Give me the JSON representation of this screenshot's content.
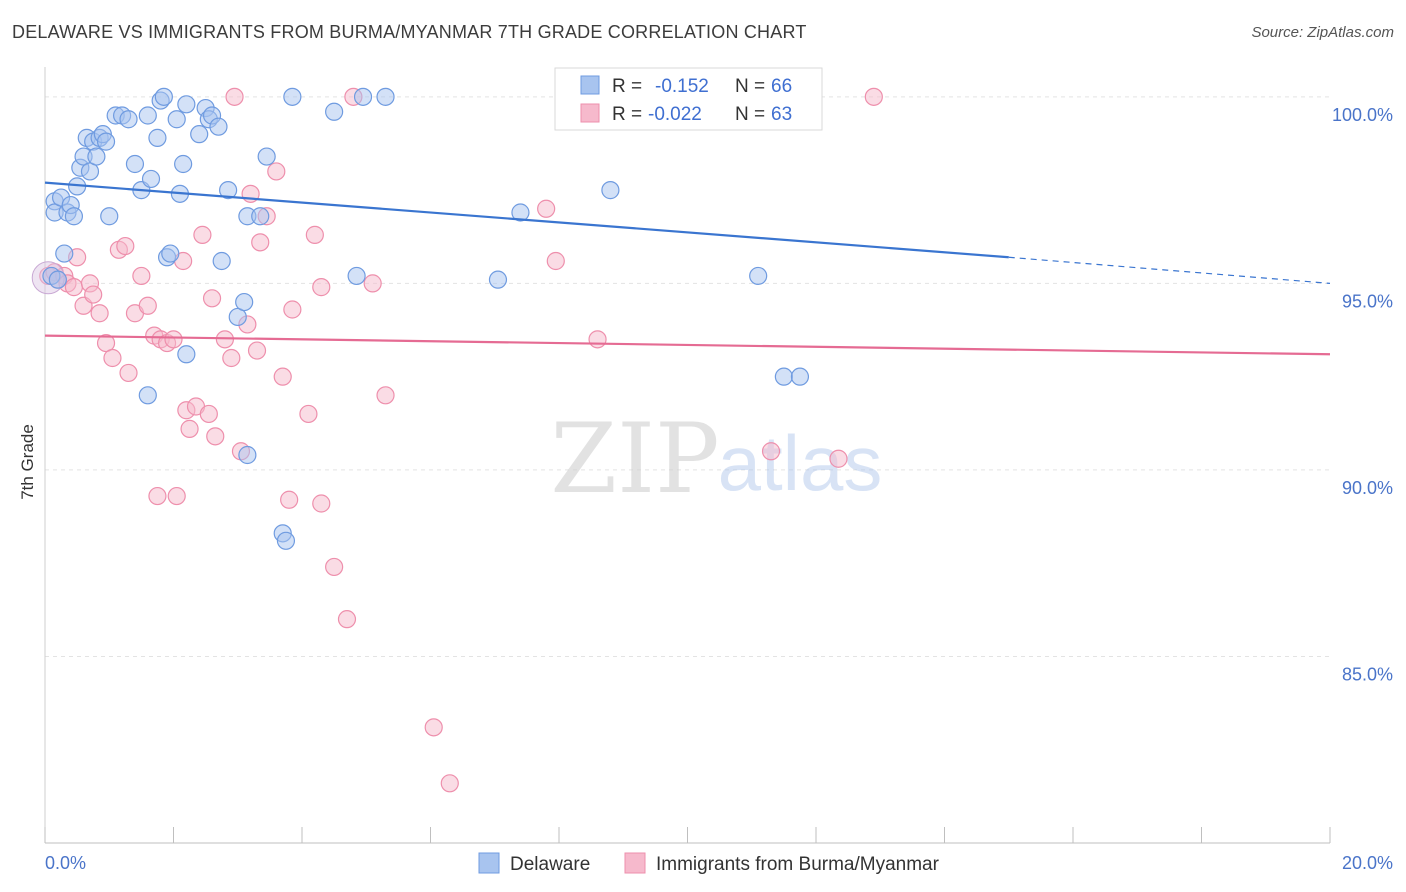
{
  "title": "DELAWARE VS IMMIGRANTS FROM BURMA/MYANMAR 7TH GRADE CORRELATION CHART",
  "source": "Source: ZipAtlas.com",
  "watermark": {
    "zip": "ZIP",
    "atlas": "atlas"
  },
  "legend_top": [
    {
      "r_label": "R =",
      "r_value": "-0.152",
      "n_label": "N =",
      "n_value": "66",
      "color": "#a8c4ef"
    },
    {
      "r_label": "R =",
      "r_value": "-0.022",
      "n_label": "N =",
      "n_value": "63",
      "color": "#f6b9cc"
    }
  ],
  "legend_bottom": [
    {
      "label": "Delaware",
      "color": "#a8c4ef"
    },
    {
      "label": "Immigrants from Burma/Myanmar",
      "color": "#f6b9cc"
    }
  ],
  "chart_data": {
    "type": "scatter",
    "ylabel": "7th Grade",
    "xlim": [
      0,
      20
    ],
    "ylim": [
      80.0,
      100.8
    ],
    "x_tick_labels": [
      "0.0%",
      "20.0%"
    ],
    "y_ticks": [
      85,
      90,
      95,
      100
    ],
    "y_tick_labels": [
      "85.0%",
      "90.0%",
      "95.0%",
      "100.0%"
    ],
    "grid": true,
    "series": [
      {
        "name": "Delaware",
        "color": "#6f9be0",
        "fill": "#a8c4ef",
        "trend": {
          "x0": 0,
          "y0": 97.7,
          "x1": 15.0,
          "y1": 95.7,
          "dash_to_x": 20.0,
          "dash_to_y": 95.0,
          "color": "#3a75d0"
        },
        "points": [
          [
            0.15,
            97.2
          ],
          [
            0.15,
            96.9
          ],
          [
            0.25,
            97.3
          ],
          [
            0.3,
            95.8
          ],
          [
            0.35,
            96.9
          ],
          [
            0.4,
            97.1
          ],
          [
            0.45,
            96.8
          ],
          [
            0.5,
            97.6
          ],
          [
            0.55,
            98.1
          ],
          [
            0.6,
            98.4
          ],
          [
            0.65,
            98.9
          ],
          [
            0.7,
            98.0
          ],
          [
            0.75,
            98.8
          ],
          [
            0.8,
            98.4
          ],
          [
            0.85,
            98.9
          ],
          [
            0.9,
            99.0
          ],
          [
            0.95,
            98.8
          ],
          [
            1.0,
            96.8
          ],
          [
            1.1,
            99.5
          ],
          [
            1.2,
            99.5
          ],
          [
            1.3,
            99.4
          ],
          [
            1.4,
            98.2
          ],
          [
            1.5,
            97.5
          ],
          [
            1.6,
            99.5
          ],
          [
            1.65,
            97.8
          ],
          [
            1.75,
            98.9
          ],
          [
            1.8,
            99.9
          ],
          [
            1.85,
            100.0
          ],
          [
            1.9,
            95.7
          ],
          [
            2.05,
            99.4
          ],
          [
            2.1,
            97.4
          ],
          [
            2.15,
            98.2
          ],
          [
            2.2,
            99.8
          ],
          [
            2.4,
            99.0
          ],
          [
            2.5,
            99.7
          ],
          [
            2.55,
            99.4
          ],
          [
            2.6,
            99.5
          ],
          [
            2.7,
            99.2
          ],
          [
            2.75,
            95.6
          ],
          [
            2.85,
            97.5
          ],
          [
            3.0,
            94.1
          ],
          [
            3.1,
            94.5
          ],
          [
            3.15,
            96.8
          ],
          [
            3.35,
            96.8
          ],
          [
            3.45,
            98.4
          ],
          [
            2.2,
            93.1
          ],
          [
            1.6,
            92.0
          ],
          [
            3.15,
            90.4
          ],
          [
            3.7,
            88.3
          ],
          [
            3.75,
            88.1
          ],
          [
            3.85,
            100.0
          ],
          [
            4.5,
            99.6
          ],
          [
            4.85,
            95.2
          ],
          [
            4.95,
            100.0
          ],
          [
            5.3,
            100.0
          ],
          [
            7.05,
            95.1
          ],
          [
            7.4,
            96.9
          ],
          [
            8.8,
            97.5
          ],
          [
            10.1,
            100.0
          ],
          [
            11.1,
            95.2
          ],
          [
            11.2,
            100.0
          ],
          [
            11.5,
            92.5
          ],
          [
            11.75,
            92.5
          ],
          [
            0.1,
            95.2
          ],
          [
            0.2,
            95.1
          ],
          [
            1.95,
            95.8
          ]
        ]
      },
      {
        "name": "Immigrants from Burma/Myanmar",
        "color": "#ee8fac",
        "fill": "#f6b9cc",
        "trend": {
          "x0": 0,
          "y0": 93.6,
          "x1": 20.0,
          "y1": 93.1,
          "color": "#e56b93"
        },
        "points": [
          [
            0.05,
            95.2
          ],
          [
            0.15,
            95.3
          ],
          [
            0.2,
            95.1
          ],
          [
            0.3,
            95.2
          ],
          [
            0.35,
            95.0
          ],
          [
            0.45,
            94.9
          ],
          [
            0.5,
            95.7
          ],
          [
            0.6,
            94.4
          ],
          [
            0.7,
            95.0
          ],
          [
            0.75,
            94.7
          ],
          [
            0.85,
            94.2
          ],
          [
            0.95,
            93.4
          ],
          [
            1.05,
            93.0
          ],
          [
            1.15,
            95.9
          ],
          [
            1.25,
            96.0
          ],
          [
            1.3,
            92.6
          ],
          [
            1.4,
            94.2
          ],
          [
            1.5,
            95.2
          ],
          [
            1.6,
            94.4
          ],
          [
            1.7,
            93.6
          ],
          [
            1.75,
            89.3
          ],
          [
            1.8,
            93.5
          ],
          [
            1.9,
            93.4
          ],
          [
            2.0,
            93.5
          ],
          [
            2.05,
            89.3
          ],
          [
            2.15,
            95.6
          ],
          [
            2.2,
            91.6
          ],
          [
            2.25,
            91.1
          ],
          [
            2.35,
            91.7
          ],
          [
            2.45,
            96.3
          ],
          [
            2.55,
            91.5
          ],
          [
            2.6,
            94.6
          ],
          [
            2.65,
            90.9
          ],
          [
            2.8,
            93.5
          ],
          [
            2.9,
            93.0
          ],
          [
            2.95,
            100.0
          ],
          [
            3.05,
            90.5
          ],
          [
            3.15,
            93.9
          ],
          [
            3.2,
            97.4
          ],
          [
            3.3,
            93.2
          ],
          [
            3.35,
            96.1
          ],
          [
            3.45,
            96.8
          ],
          [
            3.6,
            98.0
          ],
          [
            3.7,
            92.5
          ],
          [
            3.8,
            89.2
          ],
          [
            3.85,
            94.3
          ],
          [
            4.1,
            91.5
          ],
          [
            4.2,
            96.3
          ],
          [
            4.3,
            94.9
          ],
          [
            4.3,
            89.1
          ],
          [
            4.5,
            87.4
          ],
          [
            4.7,
            86.0
          ],
          [
            4.8,
            100.0
          ],
          [
            5.1,
            95.0
          ],
          [
            5.3,
            92.0
          ],
          [
            6.05,
            83.1
          ],
          [
            6.3,
            81.6
          ],
          [
            7.8,
            97.0
          ],
          [
            7.95,
            95.6
          ],
          [
            8.6,
            93.5
          ],
          [
            11.3,
            90.5
          ],
          [
            12.35,
            90.3
          ],
          [
            12.9,
            100.0
          ]
        ]
      }
    ]
  }
}
